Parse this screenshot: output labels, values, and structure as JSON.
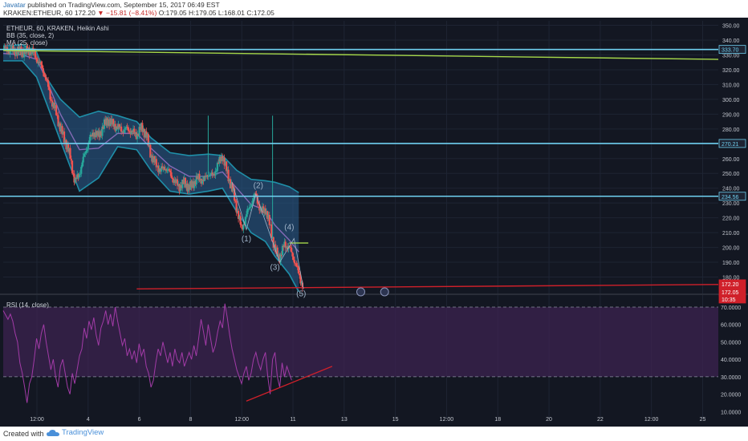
{
  "header": {
    "author": "Javatar",
    "published_text": "published on TradingView.com, September 15, 2017 06:49 EST",
    "symbol_line": "KRAKEN:ETHEUR, 60",
    "price": "172.20",
    "change": "−15.81 (−8.41%)",
    "ohlc": "O:179.05 H:179.05 L:168.01 C:172.05"
  },
  "legend": {
    "title": "ETHEUR, 60, KRAKEN, Heikin Ashi",
    "bb": "BB (35, close, 2)",
    "ma": "MA (25, close)",
    "rsi": "RSI (14, close)"
  },
  "footer": {
    "created_with": "Created with",
    "brand": "TradingView"
  },
  "colors": {
    "background": "#131722",
    "up": "#26a69a",
    "down": "#ef5350",
    "bb_band": "#1f8fa8",
    "bb_fill": "#2a5f8f",
    "horizontal_lines": "#6fd0f0",
    "trendline_top": "#a6d84a",
    "trendline_red": "#d0202a",
    "rsi_line": "#a23ba7",
    "rsi_fill": "#3e2452"
  },
  "chart_data": [
    {
      "type": "candlestick",
      "title": "ETHEUR, 60, KRAKEN, Heikin Ashi",
      "x_tick_labels": [
        "12:00",
        "4",
        "6",
        "8",
        "12:00",
        "11",
        "13",
        "15",
        "12:00",
        "18",
        "20",
        "22",
        "12:00",
        "25"
      ],
      "y_tick_labels": [
        "350.00",
        "340.00",
        "330.00",
        "320.00",
        "310.00",
        "300.00",
        "290.00",
        "280.00",
        "270.00",
        "260.00",
        "250.00",
        "240.00",
        "230.00",
        "220.00",
        "210.00",
        "200.00",
        "190.00",
        "180.00"
      ],
      "ylim": [
        170,
        353
      ],
      "horizontal_levels": [
        333.7,
        270.21,
        234.56
      ],
      "price_labels": [
        "333.70",
        "270.21",
        "234.56",
        "172.20",
        "172.05",
        "10:35"
      ],
      "wave_labels": [
        "(1)",
        "(2)",
        "(3)",
        "(4)",
        "(5)"
      ],
      "close_path": [
        [
          0,
          334
        ],
        [
          8,
          332
        ],
        [
          12,
          333
        ],
        [
          16,
          322
        ],
        [
          18,
          314
        ],
        [
          20,
          300
        ],
        [
          22,
          292
        ],
        [
          24,
          280
        ],
        [
          26,
          272
        ],
        [
          28,
          262
        ],
        [
          30,
          244
        ],
        [
          32,
          250
        ],
        [
          34,
          262
        ],
        [
          36,
          272
        ],
        [
          38,
          278
        ],
        [
          40,
          275
        ],
        [
          42,
          282
        ],
        [
          44,
          286
        ],
        [
          46,
          283
        ],
        [
          48,
          281
        ],
        [
          50,
          279
        ],
        [
          52,
          280
        ],
        [
          54,
          278
        ],
        [
          56,
          276
        ],
        [
          58,
          281
        ],
        [
          60,
          276
        ],
        [
          62,
          262
        ],
        [
          64,
          256
        ],
        [
          66,
          252
        ],
        [
          68,
          254
        ],
        [
          70,
          250
        ],
        [
          72,
          244
        ],
        [
          74,
          241
        ],
        [
          76,
          244
        ],
        [
          78,
          240
        ],
        [
          80,
          244
        ],
        [
          82,
          247
        ],
        [
          84,
          245
        ],
        [
          86,
          250
        ],
        [
          88,
          248
        ],
        [
          90,
          256
        ],
        [
          92,
          262
        ],
        [
          94,
          250
        ],
        [
          96,
          240
        ],
        [
          98,
          226
        ],
        [
          100,
          212
        ],
        [
          102,
          222
        ],
        [
          104,
          230
        ],
        [
          106,
          236
        ],
        [
          108,
          224
        ],
        [
          110,
          226
        ],
        [
          112,
          214
        ],
        [
          114,
          198
        ],
        [
          116,
          193
        ],
        [
          118,
          202
        ],
        [
          120,
          200
        ],
        [
          122,
          192
        ],
        [
          124,
          182
        ],
        [
          126,
          172
        ]
      ],
      "bb_upper": [
        [
          0,
          336
        ],
        [
          8,
          337
        ],
        [
          14,
          332
        ],
        [
          18,
          315
        ],
        [
          24,
          300
        ],
        [
          32,
          288
        ],
        [
          40,
          292
        ],
        [
          48,
          289
        ],
        [
          56,
          285
        ],
        [
          62,
          274
        ],
        [
          70,
          264
        ],
        [
          78,
          262
        ],
        [
          86,
          263
        ],
        [
          92,
          262
        ],
        [
          98,
          252
        ],
        [
          104,
          246
        ],
        [
          110,
          245
        ],
        [
          114,
          244
        ],
        [
          120,
          241
        ],
        [
          124,
          237
        ]
      ],
      "bb_lower": [
        [
          0,
          326
        ],
        [
          8,
          326
        ],
        [
          14,
          315
        ],
        [
          18,
          298
        ],
        [
          24,
          272
        ],
        [
          32,
          238
        ],
        [
          40,
          247
        ],
        [
          48,
          268
        ],
        [
          56,
          266
        ],
        [
          62,
          252
        ],
        [
          70,
          238
        ],
        [
          78,
          236
        ],
        [
          86,
          238
        ],
        [
          92,
          240
        ],
        [
          98,
          224
        ],
        [
          104,
          210
        ],
        [
          110,
          204
        ],
        [
          114,
          194
        ],
        [
          120,
          182
        ],
        [
          124,
          170
        ]
      ],
      "ma": [
        [
          0,
          331
        ],
        [
          8,
          330
        ],
        [
          14,
          327
        ],
        [
          18,
          314
        ],
        [
          24,
          290
        ],
        [
          32,
          266
        ],
        [
          40,
          267
        ],
        [
          48,
          277
        ],
        [
          56,
          277
        ],
        [
          62,
          267
        ],
        [
          70,
          255
        ],
        [
          78,
          248
        ],
        [
          86,
          248
        ],
        [
          92,
          251
        ],
        [
          98,
          240
        ],
        [
          104,
          229
        ],
        [
          110,
          225
        ],
        [
          114,
          215
        ],
        [
          120,
          205
        ],
        [
          124,
          197
        ]
      ],
      "spikes": [
        [
          86,
          250,
          289
        ],
        [
          113,
          206,
          289
        ]
      ],
      "trendlines": [
        {
          "name": "green",
          "from": [
            0,
            333
          ],
          "to": [
            300,
            327
          ]
        },
        {
          "name": "red",
          "from": [
            56,
            172
          ],
          "to": [
            300,
            175
          ]
        }
      ]
    },
    {
      "type": "line",
      "title": "RSI (14, close)",
      "y_tick_labels": [
        "70.0000",
        "60.0000",
        "50.0000",
        "40.0000",
        "30.0000",
        "20.0000",
        "10.0000"
      ],
      "ylim": [
        6,
        76
      ],
      "band": [
        30,
        70
      ],
      "rsi_path": [
        [
          0,
          68
        ],
        [
          2,
          63
        ],
        [
          3,
          66
        ],
        [
          4,
          62
        ],
        [
          5,
          55
        ],
        [
          6,
          50
        ],
        [
          7,
          38
        ],
        [
          8,
          32
        ],
        [
          9,
          24
        ],
        [
          10,
          15
        ],
        [
          11,
          26
        ],
        [
          12,
          30
        ],
        [
          13,
          40
        ],
        [
          14,
          52
        ],
        [
          15,
          46
        ],
        [
          16,
          55
        ],
        [
          17,
          60
        ],
        [
          18,
          50
        ],
        [
          19,
          42
        ],
        [
          20,
          34
        ],
        [
          21,
          40
        ],
        [
          22,
          30
        ],
        [
          23,
          24
        ],
        [
          24,
          36
        ],
        [
          25,
          40
        ],
        [
          26,
          32
        ],
        [
          27,
          24
        ],
        [
          28,
          20
        ],
        [
          29,
          32
        ],
        [
          30,
          26
        ],
        [
          31,
          34
        ],
        [
          32,
          42
        ],
        [
          33,
          46
        ],
        [
          34,
          58
        ],
        [
          35,
          52
        ],
        [
          36,
          62
        ],
        [
          37,
          57
        ],
        [
          38,
          64
        ],
        [
          39,
          54
        ],
        [
          40,
          48
        ],
        [
          41,
          58
        ],
        [
          42,
          62
        ],
        [
          43,
          68
        ],
        [
          44,
          60
        ],
        [
          45,
          66
        ],
        [
          46,
          59
        ],
        [
          47,
          70
        ],
        [
          48,
          62
        ],
        [
          49,
          55
        ],
        [
          50,
          48
        ],
        [
          51,
          52
        ],
        [
          52,
          42
        ],
        [
          53,
          46
        ],
        [
          54,
          40
        ],
        [
          55,
          45
        ],
        [
          56,
          38
        ],
        [
          57,
          49
        ],
        [
          58,
          42
        ],
        [
          59,
          46
        ],
        [
          60,
          36
        ],
        [
          61,
          32
        ],
        [
          62,
          24
        ],
        [
          63,
          28
        ],
        [
          64,
          38
        ],
        [
          65,
          46
        ],
        [
          66,
          42
        ],
        [
          67,
          50
        ],
        [
          68,
          44
        ],
        [
          69,
          38
        ],
        [
          70,
          44
        ],
        [
          71,
          36
        ],
        [
          72,
          46
        ],
        [
          73,
          40
        ],
        [
          74,
          38
        ],
        [
          75,
          44
        ],
        [
          76,
          36
        ],
        [
          77,
          40
        ],
        [
          78,
          44
        ],
        [
          79,
          40
        ],
        [
          80,
          48
        ],
        [
          81,
          42
        ],
        [
          82,
          52
        ],
        [
          83,
          63
        ],
        [
          84,
          56
        ],
        [
          85,
          48
        ],
        [
          86,
          60
        ],
        [
          87,
          52
        ],
        [
          88,
          44
        ],
        [
          89,
          48
        ],
        [
          90,
          56
        ],
        [
          91,
          62
        ],
        [
          92,
          58
        ],
        [
          93,
          72
        ],
        [
          94,
          64
        ],
        [
          95,
          54
        ],
        [
          96,
          46
        ],
        [
          97,
          40
        ],
        [
          98,
          34
        ],
        [
          99,
          30
        ],
        [
          100,
          26
        ],
        [
          101,
          32
        ],
        [
          102,
          36
        ],
        [
          103,
          28
        ],
        [
          104,
          32
        ],
        [
          105,
          40
        ],
        [
          106,
          44
        ],
        [
          107,
          38
        ],
        [
          108,
          34
        ],
        [
          109,
          40
        ],
        [
          110,
          44
        ],
        [
          111,
          30
        ],
        [
          112,
          20
        ],
        [
          113,
          40
        ],
        [
          114,
          44
        ],
        [
          115,
          30
        ],
        [
          116,
          24
        ],
        [
          117,
          38
        ],
        [
          118,
          30
        ],
        [
          119,
          36
        ],
        [
          120,
          32
        ],
        [
          121,
          28
        ]
      ],
      "trendline": {
        "from": [
          102,
          16
        ],
        "to": [
          138,
          36
        ]
      }
    }
  ]
}
